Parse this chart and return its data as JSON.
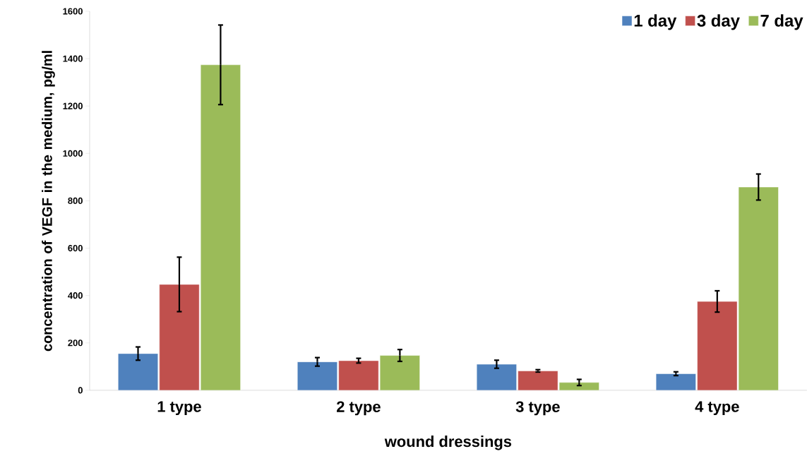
{
  "chart_data": {
    "type": "bar",
    "xlabel": "wound dressings",
    "ylabel": "concentration of VEGF in the medium, pg/ml",
    "categories": [
      "1 type",
      "2 type",
      "3 type",
      "4 type"
    ],
    "series": [
      {
        "name": "1 day",
        "color": "#4f81bd",
        "values": [
          155,
          120,
          110,
          70
        ],
        "errors": [
          28,
          18,
          17,
          8
        ]
      },
      {
        "name": "3 day",
        "color": "#c0504d",
        "values": [
          447,
          125,
          82,
          375
        ],
        "errors": [
          115,
          10,
          5,
          45
        ]
      },
      {
        "name": "7 day",
        "color": "#9bbb59",
        "values": [
          1374,
          147,
          33,
          858
        ],
        "errors": [
          168,
          25,
          13,
          55
        ]
      }
    ],
    "ylim": [
      0,
      1600
    ],
    "yticks": [
      0,
      200,
      400,
      600,
      800,
      1000,
      1200,
      1400,
      1600
    ],
    "legend": "top right"
  }
}
